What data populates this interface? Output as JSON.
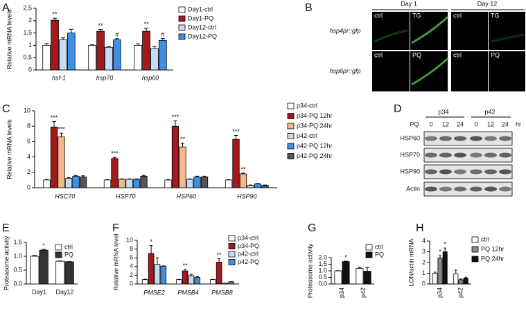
{
  "chart_data": [
    {
      "type": "bar",
      "panel": "A",
      "y_label": "Relative mRNA levels",
      "categories": [
        "hsf-1",
        "hsp70",
        "hsp60"
      ],
      "ylim": [
        0,
        2.5
      ],
      "yticks": [
        0,
        0.5,
        1.0,
        {
          "value": 1.5,
          "label": "1.5"
        },
        2.0,
        2.5
      ],
      "series": [
        {
          "name": "Day1-ctrl",
          "color": "#ffffff",
          "values": [
            1.0,
            1.0,
            1.0
          ],
          "errors": [
            0.07,
            0.02,
            0.06
          ],
          "significance": [
            null,
            null,
            null
          ]
        },
        {
          "name": "Day1-PQ",
          "color": "#a3191c",
          "values": [
            2.02,
            1.57,
            1.57
          ],
          "errors": [
            0.08,
            0.07,
            0.12
          ],
          "significance": [
            "**",
            "**",
            "**"
          ]
        },
        {
          "name": "Day12-ctrl",
          "color": "#c6dcf2",
          "values": [
            1.22,
            0.92,
            0.87
          ],
          "errors": [
            0.08,
            0.02,
            0.08
          ],
          "significance": [
            null,
            null,
            null
          ]
        },
        {
          "name": "Day12-PQ",
          "color": "#3f90e3",
          "values": [
            1.5,
            1.22,
            1.2
          ],
          "errors": [
            0.15,
            0.05,
            0.08
          ],
          "significance": [
            null,
            "#",
            "#"
          ]
        }
      ]
    },
    {
      "type": "bar",
      "panel": "C",
      "y_label": "Relative mRNA levels",
      "categories": [
        "HSC70",
        "HSP70",
        "HSP60",
        "HSP90"
      ],
      "ylim": [
        0,
        10
      ],
      "yticks": [
        0,
        2,
        4,
        6,
        8,
        10
      ],
      "series": [
        {
          "name": "p34-ctrl",
          "color": "#ffffff",
          "values": [
            1.0,
            1.0,
            1.0,
            1.0
          ],
          "errors": [
            0.05,
            0.05,
            0.05,
            0.05
          ],
          "significance": [
            null,
            null,
            null,
            null
          ]
        },
        {
          "name": "p34-PQ 12hr",
          "color": "#a3191c",
          "values": [
            7.9,
            3.8,
            8.0,
            6.3
          ],
          "errors": [
            0.7,
            0.15,
            0.7,
            0.5
          ],
          "significance": [
            "***",
            "***",
            "***",
            "***"
          ]
        },
        {
          "name": "p34-PQ 24hr",
          "color": "#f6b98b",
          "values": [
            6.6,
            1.1,
            5.3,
            1.8
          ],
          "errors": [
            0.5,
            0.05,
            0.5,
            0.1
          ],
          "significance": [
            "***",
            null,
            "**",
            "**"
          ]
        },
        {
          "name": "p42-ctrl",
          "color": "#c6dcf2",
          "values": [
            1.2,
            1.1,
            1.1,
            0.3
          ],
          "errors": [
            0.1,
            0.05,
            0.05,
            0.05
          ],
          "significance": [
            null,
            null,
            null,
            null
          ]
        },
        {
          "name": "p42-PQ 12hr",
          "color": "#3f90e3",
          "values": [
            1.5,
            1.1,
            1.4,
            0.5
          ],
          "errors": [
            0.1,
            0.05,
            0.1,
            0.05
          ],
          "significance": [
            null,
            null,
            null,
            null
          ]
        },
        {
          "name": "p42-PQ 24hr",
          "color": "#555555",
          "values": [
            1.4,
            1.5,
            1.4,
            0.3
          ],
          "errors": [
            0.15,
            0.1,
            0.1,
            0.05
          ],
          "significance": [
            null,
            null,
            null,
            null
          ]
        }
      ]
    },
    {
      "type": "bar",
      "panel": "E",
      "y_label": "Proteasome activity",
      "categories": [
        "Day1",
        "Day12"
      ],
      "ylim": [
        0,
        1.5
      ],
      "yticks": [
        {
          "value": 0,
          "label": "0.0"
        },
        0.5,
        {
          "value": 1,
          "label": "1.0"
        },
        1.5
      ],
      "series": [
        {
          "name": "ctrl",
          "color": "#ffffff",
          "values": [
            1.0,
            0.82
          ],
          "errors": [
            0.03,
            0.01
          ],
          "significance": [
            null,
            null
          ]
        },
        {
          "name": "PQ",
          "color": "#333333",
          "values": [
            1.22,
            0.8
          ],
          "errors": [
            0.03,
            0.01
          ],
          "significance": [
            "*",
            null
          ]
        }
      ]
    },
    {
      "type": "bar",
      "panel": "F",
      "y_label": "Relative mRNA level",
      "categories": [
        "PMSE2",
        "PMSB4",
        "PMSB8"
      ],
      "ylim": [
        0,
        10
      ],
      "yticks": [
        0,
        2,
        4,
        6,
        8,
        10
      ],
      "series": [
        {
          "name": "p34-ctrl",
          "color": "#ffffff",
          "values": [
            1.0,
            1.0,
            1.0
          ],
          "errors": [
            0.1,
            0.05,
            0.05
          ],
          "significance": [
            null,
            null,
            null
          ]
        },
        {
          "name": "p34-PQ",
          "color": "#a3191c",
          "values": [
            7.0,
            3.0,
            5.0
          ],
          "errors": [
            1.8,
            0.3,
            0.8
          ],
          "significance": [
            "*",
            "**",
            "**"
          ]
        },
        {
          "name": "p42-ctrl",
          "color": "#c6dcf2",
          "values": [
            4.5,
            1.9,
            0.15
          ],
          "errors": [
            1.5,
            0.3,
            0.02
          ],
          "significance": [
            null,
            null,
            null
          ]
        },
        {
          "name": "p42-PQ",
          "color": "#3f90e3",
          "values": [
            4.1,
            1.5,
            0.5
          ],
          "errors": [
            0.05,
            0.2,
            0.03
          ],
          "significance": [
            null,
            null,
            null
          ]
        }
      ]
    },
    {
      "type": "bar",
      "panel": "G",
      "y_label": "Proteasome activity",
      "categories": [
        "p34",
        "p42"
      ],
      "ylim": [
        0,
        2.0
      ],
      "yticks": [
        {
          "value": 0,
          "label": "0.0"
        },
        0.5,
        {
          "value": 1,
          "label": "1.0"
        },
        1.5,
        {
          "value": 2,
          "label": "2.0"
        }
      ],
      "series": [
        {
          "name": "ctrl",
          "color": "#ffffff",
          "values": [
            1.0,
            1.18
          ],
          "errors": [
            0.01,
            0.08
          ],
          "significance": [
            null,
            null
          ]
        },
        {
          "name": "PQ",
          "color": "#111111",
          "values": [
            1.7,
            0.97
          ],
          "errors": [
            0.03,
            0.27
          ],
          "significance": [
            "*",
            null
          ]
        }
      ]
    },
    {
      "type": "bar",
      "panel": "H",
      "y_label": "LON/actin mRNA",
      "categories": [
        "p34",
        "p42"
      ],
      "ylim": [
        0,
        4
      ],
      "yticks": [
        0,
        1,
        2,
        3,
        4
      ],
      "series": [
        {
          "name": "ctrl",
          "color": "#ffffff",
          "values": [
            1.0,
            0.95
          ],
          "errors": [
            0.1,
            0.35
          ],
          "significance": [
            null,
            null
          ]
        },
        {
          "name": "PQ 12hr",
          "color": "#888888",
          "values": [
            2.4,
            0.4
          ],
          "errors": [
            0.25,
            0.08
          ],
          "significance": [
            "*",
            null
          ]
        },
        {
          "name": "PQ 24hr",
          "color": "#111111",
          "values": [
            3.0,
            0.55
          ],
          "errors": [
            0.35,
            0.08
          ],
          "significance": [
            "*",
            null
          ]
        }
      ]
    }
  ],
  "image_panels": {
    "B": {
      "panel": "B",
      "column_labels": [
        "Day 1",
        "Day 12"
      ],
      "rows": [
        {
          "label": "hsp4pr::gfp",
          "cells": [
            "ctrl",
            "TG",
            "ctrl",
            "TG"
          ]
        },
        {
          "label": "hsp6pr::gfp",
          "cells": [
            "ctrl",
            "PQ",
            "ctrl",
            "PQ"
          ]
        }
      ]
    },
    "D": {
      "panel": "D",
      "groups": [
        "p34",
        "p42"
      ],
      "row_header": "PQ",
      "lanes": [
        "0",
        "12",
        "24",
        "0",
        "12",
        "24"
      ],
      "unit": "hr",
      "bands": [
        "HSP60",
        "HSP70",
        "HSP90",
        "Actin"
      ]
    }
  }
}
